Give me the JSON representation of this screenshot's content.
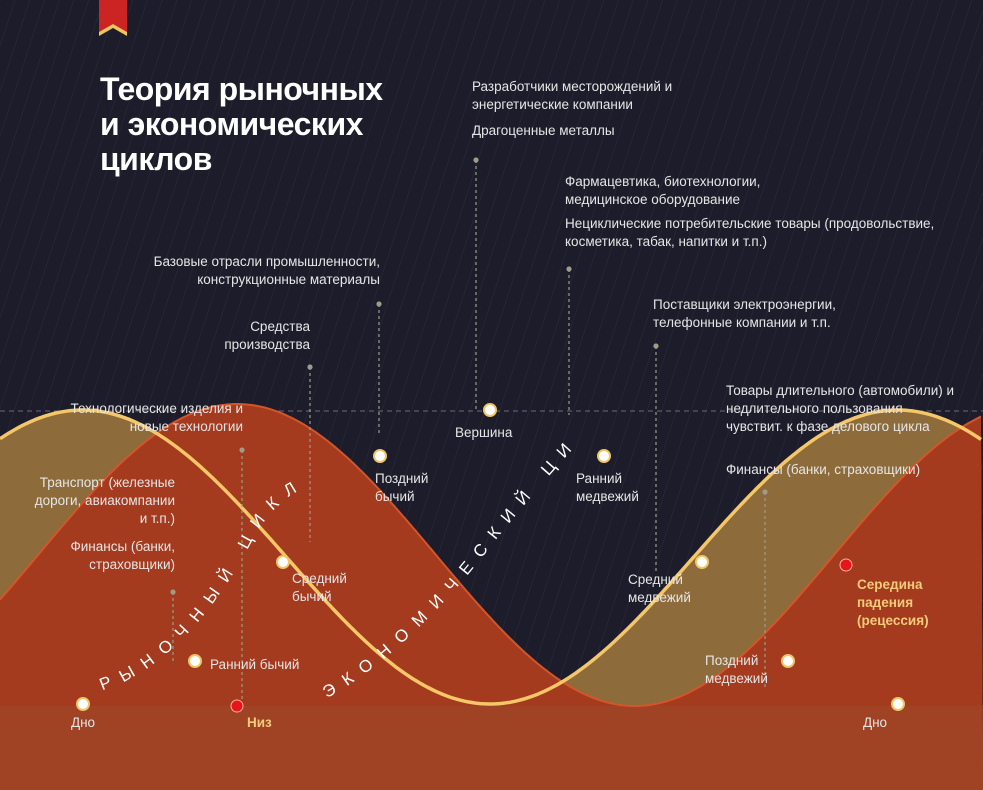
{
  "title": {
    "line1": "Теория рыночных",
    "line2": "и экономических",
    "line3": "циклов"
  },
  "curves": {
    "market_cycle": "РЫНОЧНЫЙ ЦИКЛ",
    "economic_cycle": "ЭКОНОМИЧЕСКИЙ ЦИКЛ"
  },
  "market_points": [
    {
      "label": "Дно"
    },
    {
      "label": "Ранний бычий"
    },
    {
      "label": "Средний бычий"
    },
    {
      "label": "Поздний бычий"
    },
    {
      "label": "Вершина"
    },
    {
      "label": "Ранний медвежий"
    },
    {
      "label": "Средний медвежий"
    },
    {
      "label": "Поздний медвежий"
    },
    {
      "label": "Дно"
    }
  ],
  "economic_points": [
    {
      "label": "Низ"
    },
    {
      "label": "Середина падения (рецессия)"
    }
  ],
  "sectors": {
    "finance_left": "Финансы (банки, страховщики)",
    "transport": "Транспорт (железные дороги, авиакомпании и т.п.)",
    "tech": "Технологические изделия и новые технологии",
    "capital_goods": "Средства производства",
    "basic_industry": "Базовые отрасли промышленности, конструкционные материалы",
    "energy": "Разработчики месторождений и энергетические компании",
    "metals": "Драгоценные металлы",
    "pharma": "Фармацевтика, биотехнологии, медицинское оборудование",
    "noncyclical": "Нециклические потребительские товары (продовольствие, косметика, табак, напитки и т.п.)",
    "utilities": "Поставщики электроэнергии, телефонные компании и т.п.",
    "durables": "Товары длительного (автомобили) и недлительного пользования чувствит. к фазе делового цикла",
    "finance_right": "Финансы (банки, страховщики)"
  },
  "colors": {
    "background": "#1c1c2a",
    "market_curve": "#f6c768",
    "market_fill": "#8e6b3b",
    "economic_fill": "#a43a1e",
    "dark_red": "#5e0f16",
    "highlight_text": "#f2cc7a",
    "red_marker": "#e8141c"
  }
}
